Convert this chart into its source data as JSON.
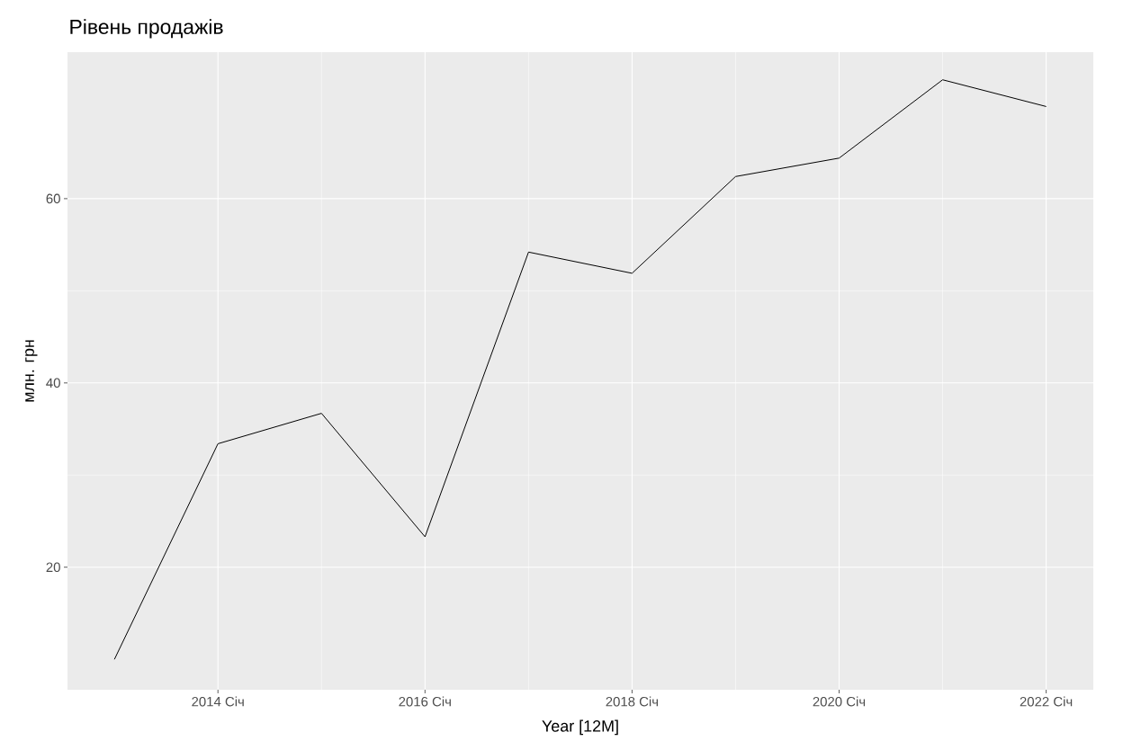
{
  "chart_data": {
    "type": "line",
    "title": "Рівень продажів",
    "xlabel": "Year [12M]",
    "ylabel": "млн. грн",
    "x": [
      "2013-01",
      "2014-01",
      "2015-01",
      "2016-01",
      "2017-01",
      "2018-01",
      "2019-01",
      "2020-01",
      "2021-01",
      "2022-01"
    ],
    "series": [
      {
        "color": "#000000",
        "values": [
          10.0,
          33.4,
          36.7,
          23.3,
          54.2,
          51.9,
          62.4,
          64.4,
          72.9,
          70.0
        ]
      }
    ],
    "xlim": [
      "2012-07-18",
      "2022-06-15"
    ],
    "ylim": [
      6.7,
      75.9
    ],
    "xticks": [
      {
        "value": "2014-01",
        "label": "2014 Січ"
      },
      {
        "value": "2016-01",
        "label": "2016 Січ"
      },
      {
        "value": "2018-01",
        "label": "2018 Січ"
      },
      {
        "value": "2020-01",
        "label": "2020 Січ"
      },
      {
        "value": "2022-01",
        "label": "2022 Січ"
      }
    ],
    "yticks": [
      20,
      40,
      60
    ],
    "grid": true,
    "marker": "none",
    "line_style": "solid"
  }
}
